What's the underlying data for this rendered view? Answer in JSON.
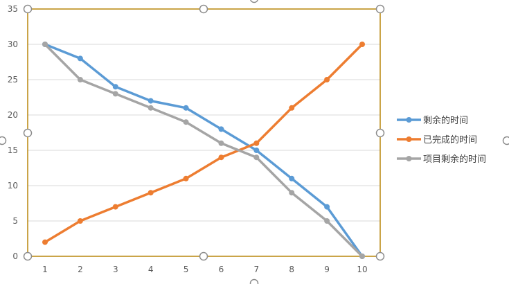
{
  "colors": {
    "grid": "#d9d9d9",
    "axis": "#bfbfbf",
    "selection": "#b8860b",
    "handle_stroke": "#8c8c8c",
    "tick_text": "#595959",
    "legend_text": "#404040"
  },
  "selection_state": "selected",
  "chart_data": {
    "type": "line",
    "title": "",
    "xlabel": "",
    "ylabel": "",
    "x": [
      1,
      2,
      3,
      4,
      5,
      6,
      7,
      8,
      9,
      10
    ],
    "x_ticks": [
      "1",
      "2",
      "3",
      "4",
      "5",
      "6",
      "7",
      "8",
      "9",
      "10"
    ],
    "ylim": [
      0,
      35
    ],
    "y_ticks": [
      "0",
      "5",
      "10",
      "15",
      "20",
      "25",
      "30",
      "35"
    ],
    "grid": true,
    "legend_position": "right",
    "series": [
      {
        "name": "剩余的时间",
        "color": "#5b9bd5",
        "values": [
          30,
          28,
          24,
          22,
          21,
          18,
          15,
          11,
          7,
          0
        ]
      },
      {
        "name": "已完成的时间",
        "color": "#ed7d31",
        "values": [
          2,
          5,
          7,
          9,
          11,
          14,
          16,
          21,
          25,
          30
        ]
      },
      {
        "name": "项目剩余的时间",
        "color": "#a5a5a5",
        "values": [
          30,
          25,
          23,
          21,
          19,
          16,
          14,
          9,
          5,
          0
        ]
      }
    ]
  }
}
